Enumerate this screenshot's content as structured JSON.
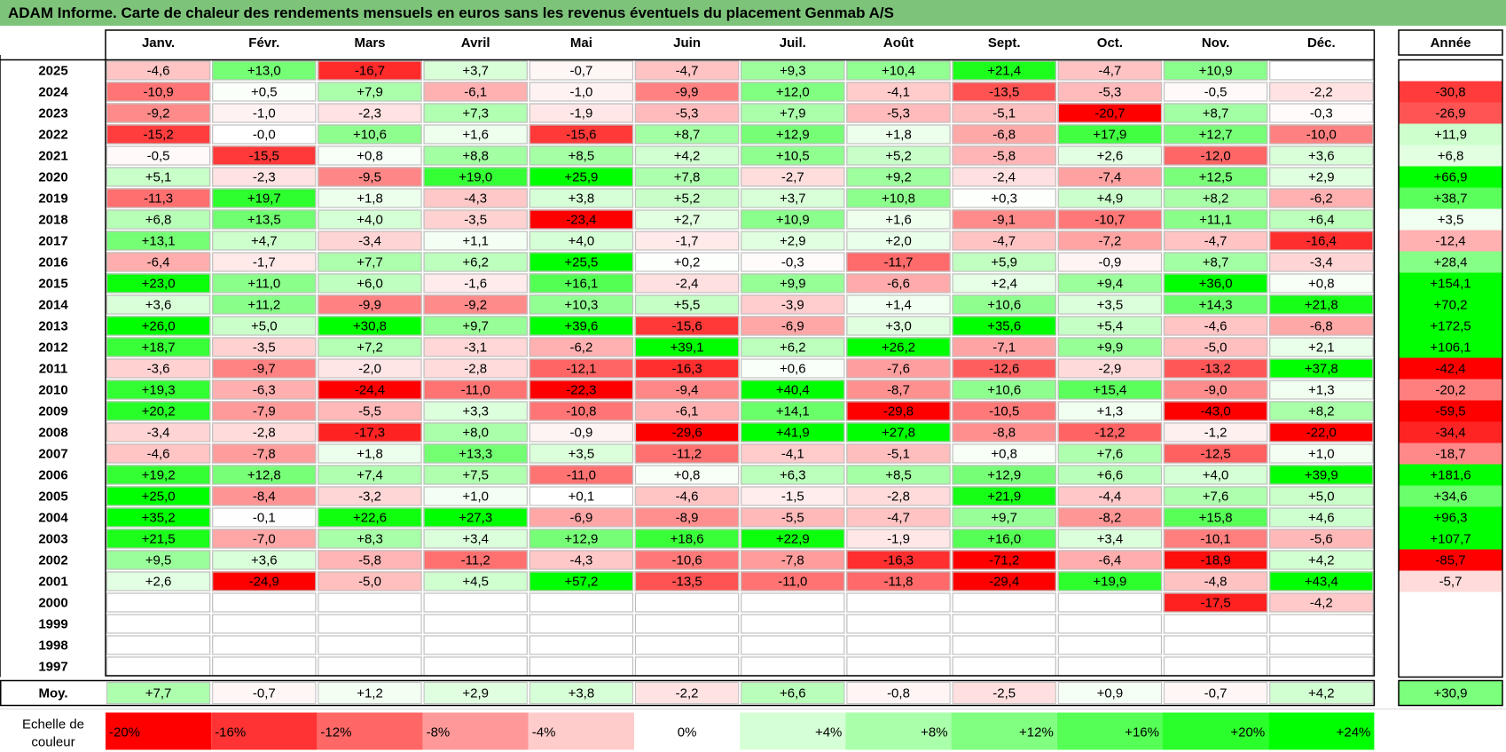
{
  "title": "ADAM Informe. Carte de chaleur des rendements mensuels en euros sans les revenus éventuels du placement Genmab A/S",
  "chart_data": {
    "type": "heatmap",
    "months": [
      "Janv.",
      "Févr.",
      "Mars",
      "Avril",
      "Mai",
      "Juin",
      "Juil.",
      "Août",
      "Sept.",
      "Oct.",
      "Nov.",
      "Déc."
    ],
    "year_header": "Année",
    "rows": [
      {
        "year": "2025",
        "values": [
          "-4,6",
          "+13,0",
          "-16,7",
          "+3,7",
          "-0,7",
          "-4,7",
          "+9,3",
          "+10,4",
          "+21,4",
          "-4,7",
          "+10,9",
          ""
        ],
        "annual": ""
      },
      {
        "year": "2024",
        "values": [
          "-10,9",
          "+0,5",
          "+7,9",
          "-6,1",
          "-1,0",
          "-9,9",
          "+12,0",
          "-4,1",
          "-13,5",
          "-5,3",
          "-0,5",
          "-2,2"
        ],
        "annual": "-30,8"
      },
      {
        "year": "2023",
        "values": [
          "-9,2",
          "-1,0",
          "-2,3",
          "+7,3",
          "-1,9",
          "-5,3",
          "+7,9",
          "-5,3",
          "-5,1",
          "-20,7",
          "+8,7",
          "-0,3"
        ],
        "annual": "-26,9"
      },
      {
        "year": "2022",
        "values": [
          "-15,2",
          "-0,0",
          "+10,6",
          "+1,6",
          "-15,6",
          "+8,7",
          "+12,9",
          "+1,8",
          "-6,8",
          "+17,9",
          "+12,7",
          "-10,0"
        ],
        "annual": "+11,9"
      },
      {
        "year": "2021",
        "values": [
          "-0,5",
          "-15,5",
          "+0,8",
          "+8,8",
          "+8,5",
          "+4,2",
          "+10,5",
          "+5,2",
          "-5,8",
          "+2,6",
          "-12,0",
          "+3,6"
        ],
        "annual": "+6,8"
      },
      {
        "year": "2020",
        "values": [
          "+5,1",
          "-2,3",
          "-9,5",
          "+19,0",
          "+25,9",
          "+7,8",
          "-2,7",
          "+9,2",
          "-2,4",
          "-7,4",
          "+12,5",
          "+2,9"
        ],
        "annual": "+66,9"
      },
      {
        "year": "2019",
        "values": [
          "-11,3",
          "+19,7",
          "+1,8",
          "-4,3",
          "+3,8",
          "+5,2",
          "+3,7",
          "+10,8",
          "+0,3",
          "+4,9",
          "+8,2",
          "-6,2"
        ],
        "annual": "+38,7"
      },
      {
        "year": "2018",
        "values": [
          "+6,8",
          "+13,5",
          "+4,0",
          "-3,5",
          "-23,4",
          "+2,7",
          "+10,9",
          "+1,6",
          "-9,1",
          "-10,7",
          "+11,1",
          "+6,4"
        ],
        "annual": "+3,5"
      },
      {
        "year": "2017",
        "values": [
          "+13,1",
          "+4,7",
          "-3,4",
          "+1,1",
          "+4,0",
          "-1,7",
          "+2,9",
          "+2,0",
          "-4,7",
          "-7,2",
          "-4,7",
          "-16,4"
        ],
        "annual": "-12,4"
      },
      {
        "year": "2016",
        "values": [
          "-6,4",
          "-1,7",
          "+7,7",
          "+6,2",
          "+25,5",
          "+0,2",
          "-0,3",
          "-11,7",
          "+5,9",
          "-0,9",
          "+8,7",
          "-3,4"
        ],
        "annual": "+28,4"
      },
      {
        "year": "2015",
        "values": [
          "+23,0",
          "+11,0",
          "+6,0",
          "-1,6",
          "+16,1",
          "-2,4",
          "+9,9",
          "-6,6",
          "+2,4",
          "+9,4",
          "+36,0",
          "+0,8"
        ],
        "annual": "+154,1"
      },
      {
        "year": "2014",
        "values": [
          "+3,6",
          "+11,2",
          "-9,9",
          "-9,2",
          "+10,3",
          "+5,5",
          "-3,9",
          "+1,4",
          "+10,6",
          "+3,5",
          "+14,3",
          "+21,8"
        ],
        "annual": "+70,2"
      },
      {
        "year": "2013",
        "values": [
          "+26,0",
          "+5,0",
          "+30,8",
          "+9,7",
          "+39,6",
          "-15,6",
          "-6,9",
          "+3,0",
          "+35,6",
          "+5,4",
          "-4,6",
          "-6,8"
        ],
        "annual": "+172,5"
      },
      {
        "year": "2012",
        "values": [
          "+18,7",
          "-3,5",
          "+7,2",
          "-3,1",
          "-6,2",
          "+39,1",
          "+6,2",
          "+26,2",
          "-7,1",
          "+9,9",
          "-5,0",
          "+2,1"
        ],
        "annual": "+106,1"
      },
      {
        "year": "2011",
        "values": [
          "-3,6",
          "-9,7",
          "-2,0",
          "-2,8",
          "-12,1",
          "-16,3",
          "+0,6",
          "-7,6",
          "-12,6",
          "-2,9",
          "-13,2",
          "+37,8"
        ],
        "annual": "-42,4"
      },
      {
        "year": "2010",
        "values": [
          "+19,3",
          "-6,3",
          "-24,4",
          "-11,0",
          "-22,3",
          "-9,4",
          "+40,4",
          "-8,7",
          "+10,6",
          "+15,4",
          "-9,0",
          "+1,3"
        ],
        "annual": "-20,2"
      },
      {
        "year": "2009",
        "values": [
          "+20,2",
          "-7,9",
          "-5,5",
          "+3,3",
          "-10,8",
          "-6,1",
          "+14,1",
          "-29,8",
          "-10,5",
          "+1,3",
          "-43,0",
          "+8,2"
        ],
        "annual": "-59,5"
      },
      {
        "year": "2008",
        "values": [
          "-3,4",
          "-2,8",
          "-17,3",
          "+8,0",
          "-0,9",
          "-29,6",
          "+41,9",
          "+27,8",
          "-8,8",
          "-12,2",
          "-1,2",
          "-22,0"
        ],
        "annual": "-34,4"
      },
      {
        "year": "2007",
        "values": [
          "-4,6",
          "-7,8",
          "+1,8",
          "+13,3",
          "+3,5",
          "-11,2",
          "-4,1",
          "-5,1",
          "+0,8",
          "+7,6",
          "-12,5",
          "+1,0"
        ],
        "annual": "-18,7"
      },
      {
        "year": "2006",
        "values": [
          "+19,2",
          "+12,8",
          "+7,4",
          "+7,5",
          "-11,0",
          "+0,8",
          "+6,3",
          "+8,5",
          "+12,9",
          "+6,6",
          "+4,0",
          "+39,9"
        ],
        "annual": "+181,6"
      },
      {
        "year": "2005",
        "values": [
          "+25,0",
          "-8,4",
          "-3,2",
          "+1,0",
          "+0,1",
          "-4,6",
          "-1,5",
          "-2,8",
          "+21,9",
          "-4,4",
          "+7,6",
          "+5,0"
        ],
        "annual": "+34,6"
      },
      {
        "year": "2004",
        "values": [
          "+35,2",
          "-0,1",
          "+22,6",
          "+27,3",
          "-6,9",
          "-8,9",
          "-5,5",
          "-4,7",
          "+9,7",
          "-8,2",
          "+15,8",
          "+4,6"
        ],
        "annual": "+96,3"
      },
      {
        "year": "2003",
        "values": [
          "+21,5",
          "-7,0",
          "+8,3",
          "+3,4",
          "+12,9",
          "+18,6",
          "+22,9",
          "-1,9",
          "+16,0",
          "+3,4",
          "-10,1",
          "-5,6"
        ],
        "annual": "+107,7"
      },
      {
        "year": "2002",
        "values": [
          "+9,5",
          "+3,6",
          "-5,8",
          "-11,2",
          "-4,3",
          "-10,6",
          "-7,8",
          "-16,3",
          "-71,2",
          "-6,4",
          "-18,9",
          "+4,2"
        ],
        "annual": "-85,7"
      },
      {
        "year": "2001",
        "values": [
          "+2,6",
          "-24,9",
          "-5,0",
          "+4,5",
          "+57,2",
          "-13,5",
          "-11,0",
          "-11,8",
          "-29,4",
          "+19,9",
          "-4,8",
          "+43,4"
        ],
        "annual": "-5,7"
      },
      {
        "year": "2000",
        "values": [
          "",
          "",
          "",
          "",
          "",
          "",
          "",
          "",
          "",
          "",
          "-17,5",
          "-4,2"
        ],
        "annual": ""
      },
      {
        "year": "1999",
        "values": [
          "",
          "",
          "",
          "",
          "",
          "",
          "",
          "",
          "",
          "",
          "",
          ""
        ],
        "annual": ""
      },
      {
        "year": "1998",
        "values": [
          "",
          "",
          "",
          "",
          "",
          "",
          "",
          "",
          "",
          "",
          "",
          ""
        ],
        "annual": ""
      },
      {
        "year": "1997",
        "values": [
          "",
          "",
          "",
          "",
          "",
          "",
          "",
          "",
          "",
          "",
          "",
          ""
        ],
        "annual": ""
      }
    ],
    "average": {
      "label": "Moy.",
      "values": [
        "+7,7",
        "-0,7",
        "+1,2",
        "+2,9",
        "+3,8",
        "-2,2",
        "+6,6",
        "-0,8",
        "-2,5",
        "+0,9",
        "-0,7",
        "+4,2"
      ],
      "annual": "+30,9"
    },
    "scale": {
      "label": "Echelle de couleur",
      "steps": [
        {
          "label": "-20%",
          "value": -20
        },
        {
          "label": "-16%",
          "value": -16
        },
        {
          "label": "-12%",
          "value": -12
        },
        {
          "label": "-8%",
          "value": -8
        },
        {
          "label": "-4%",
          "value": -4
        },
        {
          "label": "0%",
          "value": 0
        },
        {
          "label": "+4%",
          "value": 4
        },
        {
          "label": "+8%",
          "value": 8
        },
        {
          "label": "+12%",
          "value": 12
        },
        {
          "label": "+16%",
          "value": 16
        },
        {
          "label": "+20%",
          "value": 20
        },
        {
          "label": "+24%",
          "value": 24
        }
      ]
    },
    "colors": {
      "title_bar": "#7dc47a",
      "negative_max": "#ff0000",
      "positive_max": "#00ff00",
      "neutral": "#ffffff",
      "grid": "#bfbfbf",
      "border": "#000000"
    },
    "color_scale_limits": {
      "negative": -20,
      "positive": 24,
      "annual_negative": -40,
      "annual_positive": 60
    }
  }
}
